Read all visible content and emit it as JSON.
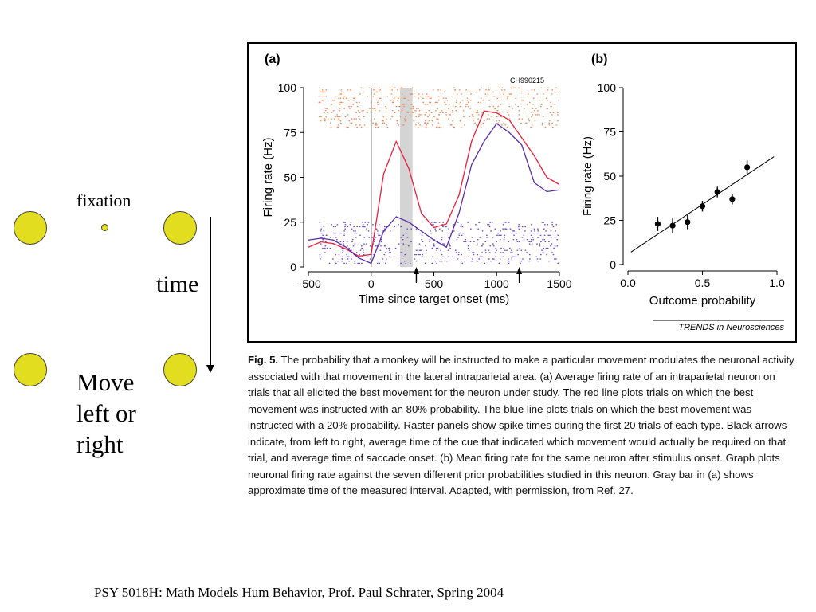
{
  "left_panel": {
    "fixation_label": "fixation",
    "time_label": "time",
    "move_label_lines": [
      "Move",
      "left or",
      "right"
    ]
  },
  "figure": {
    "panel_a_label": "(a)",
    "panel_b_label": "(b)",
    "cell_id": "CH990215",
    "journal": "TRENDS in Neurosciences"
  },
  "chart_data": [
    {
      "type": "line",
      "panel": "(a)",
      "xlabel": "Time since target onset (ms)",
      "ylabel": "Firing rate (Hz)",
      "xlim": [
        -500,
        1500
      ],
      "ylim": [
        0,
        100
      ],
      "xticks": [
        -500,
        0,
        500,
        1000,
        1500
      ],
      "yticks": [
        0,
        25,
        50,
        75,
        100
      ],
      "xtick_labels": [
        "−500",
        "0",
        "500",
        "1000",
        "1500"
      ],
      "shaded_interval": [
        230,
        330
      ],
      "vertical_line_x": 0,
      "arrows_x": [
        360,
        1180
      ],
      "series": [
        {
          "color": "#e8203c",
          "x": [
            -500,
            -400,
            -300,
            -200,
            -100,
            0,
            100,
            200,
            300,
            400,
            500,
            600,
            700,
            800,
            900,
            1000,
            1100,
            1200,
            1300,
            1400,
            1500
          ],
          "values": [
            11,
            14,
            13,
            10,
            6,
            7,
            52,
            70,
            55,
            30,
            22,
            24,
            40,
            70,
            87,
            86,
            82,
            72,
            62,
            50,
            46
          ]
        },
        {
          "color": "#5a2ca8",
          "x": [
            -500,
            -400,
            -300,
            -200,
            -100,
            0,
            100,
            200,
            300,
            400,
            500,
            600,
            700,
            800,
            900,
            1000,
            1100,
            1200,
            1300,
            1400,
            1500
          ],
          "values": [
            15,
            16,
            15,
            11,
            5,
            2,
            20,
            28,
            25,
            20,
            15,
            11,
            30,
            57,
            70,
            80,
            75,
            68,
            47,
            42,
            43
          ]
        }
      ],
      "rasters": [
        {
          "color": "#ef8a55",
          "y_range": [
            77,
            100
          ]
        },
        {
          "color": "#6a4ac8",
          "y_range": [
            1,
            25
          ]
        }
      ]
    },
    {
      "type": "scatter",
      "panel": "(b)",
      "xlabel": "Outcome probability",
      "ylabel": "Firing rate (Hz)",
      "xlim": [
        0,
        1
      ],
      "ylim": [
        0,
        100
      ],
      "xticks": [
        0,
        0.5,
        1
      ],
      "xtick_labels": [
        "0.0",
        "0.5",
        "1.0"
      ],
      "yticks": [
        0,
        25,
        50,
        75,
        100
      ],
      "points": [
        {
          "x": 0.2,
          "y": 23,
          "err": 4
        },
        {
          "x": 0.3,
          "y": 22,
          "err": 4
        },
        {
          "x": 0.4,
          "y": 24,
          "err": 4
        },
        {
          "x": 0.5,
          "y": 33,
          "err": 3
        },
        {
          "x": 0.6,
          "y": 41,
          "err": 3
        },
        {
          "x": 0.7,
          "y": 37,
          "err": 3
        },
        {
          "x": 0.8,
          "y": 55,
          "err": 4
        }
      ],
      "fit_line": {
        "x": [
          0.02,
          0.98
        ],
        "y": [
          7,
          61
        ]
      }
    }
  ],
  "caption": {
    "label": "Fig. 5.",
    "text": "The probability that a monkey will be instructed to make a particular movement modulates the neuronal activity associated with that movement in the lateral intraparietal area. (a) Average firing rate of an intraparietal neuron on trials that all elicited the best movement for the neuron under study. The red line plots trials on which the best movement was instructed with an 80% probability. The blue line plots trials on which the best movement was instructed with a 20% probability. Raster panels show spike times during the first 20 trials of each type. Black arrows indicate, from left to right, average time of the cue that indicated which movement would actually be required on that trial, and average time of saccade onset. (b) Mean firing rate for the same neuron after stimulus onset. Graph plots neuronal firing rate against the seven different prior probabilities studied in this neuron. Gray bar in (a) shows approximate time of the measured interval. Adapted, with permission, from Ref. 27."
  },
  "footer": "PSY 5018H: Math Models Hum Behavior, Prof. Paul Schrater, Spring 2004"
}
